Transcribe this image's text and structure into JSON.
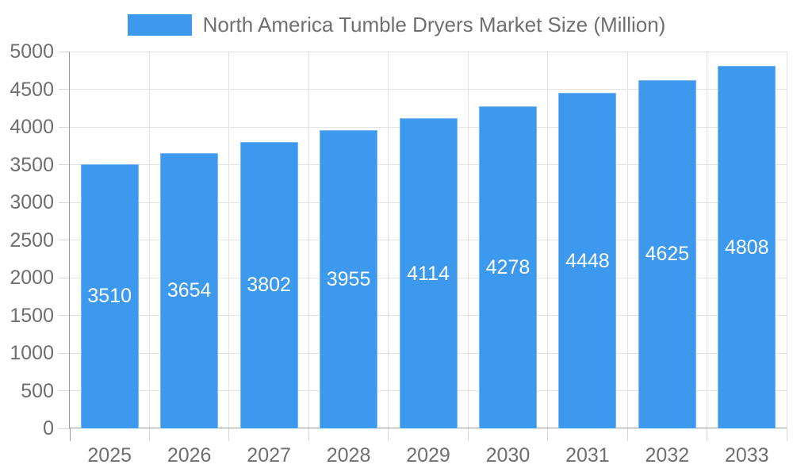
{
  "chart_data": {
    "type": "bar",
    "title": "North America Tumble Dryers Market Size (Million)",
    "categories": [
      "2025",
      "2026",
      "2027",
      "2028",
      "2029",
      "2030",
      "2031",
      "2032",
      "2033"
    ],
    "series": [
      {
        "name": "North America Tumble Dryers Market Size (Million)",
        "values": [
          3510,
          3654,
          3802,
          3955,
          4114,
          4278,
          4448,
          4625,
          4808
        ]
      }
    ],
    "xlabel": "",
    "ylabel": "",
    "ylim": [
      0,
      5000
    ],
    "ytick_step": 500,
    "grid": true,
    "legend_position": "top-center",
    "bar_value_labels": "inside-center",
    "colors": {
      "bar": "#3c99ed",
      "bar_border": "#7ab9f2",
      "grid": "#e3e3e3",
      "axis": "#9a9a9a",
      "tick": "#d6d6d6",
      "text": "#6f6f6f",
      "value_label": "#ffffff",
      "background": "#ffffff"
    }
  }
}
